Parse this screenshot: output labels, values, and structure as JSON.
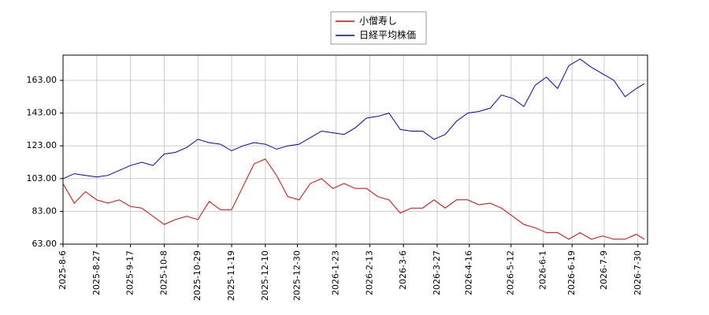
{
  "chart_data": {
    "type": "line",
    "x": [
      "2025-8-6",
      "2025-8-13",
      "2025-8-20",
      "2025-8-27",
      "2025-9-3",
      "2025-9-10",
      "2025-9-17",
      "2025-9-24",
      "2025-10-1",
      "2025-10-8",
      "2025-10-15",
      "2025-10-22",
      "2025-10-29",
      "2025-11-5",
      "2025-11-12",
      "2025-11-19",
      "2025-11-26",
      "2025-12-3",
      "2025-12-10",
      "2025-12-17",
      "2025-12-24",
      "2025-12-31",
      "2026-1-7",
      "2026-1-14",
      "2026-1-21",
      "2026-1-28",
      "2026-2-4",
      "2026-2-11",
      "2026-2-18",
      "2026-2-25",
      "2026-3-4",
      "2026-3-11",
      "2026-3-18",
      "2026-3-25",
      "2026-4-1",
      "2026-4-8",
      "2026-4-15",
      "2026-4-22",
      "2026-4-29",
      "2026-5-6",
      "2026-5-13",
      "2026-5-20",
      "2026-5-27",
      "2026-6-3",
      "2026-6-10",
      "2026-6-17",
      "2026-6-24",
      "2026-7-1",
      "2026-7-8",
      "2026-7-15",
      "2026-7-22",
      "2026-7-29",
      "2026-8-3"
    ],
    "series": [
      {
        "name": "小僧寿し",
        "color": "#dd0000",
        "values": [
          100,
          88,
          95,
          90,
          88,
          90,
          86,
          85,
          80,
          75,
          78,
          80,
          78,
          89,
          84,
          84,
          98,
          112,
          115,
          105,
          92,
          90,
          100,
          103,
          97,
          100,
          97,
          97,
          92,
          90,
          82,
          85,
          85,
          90,
          85,
          90,
          90,
          87,
          88,
          85,
          80,
          75,
          73,
          70,
          70,
          66,
          70,
          66,
          68,
          66,
          66,
          69,
          66
        ]
      },
      {
        "name": "日経平均株価",
        "color": "#0000cc",
        "values": [
          103,
          106,
          105,
          104,
          105,
          108,
          111,
          113,
          111,
          118,
          119,
          122,
          127,
          125,
          124,
          120,
          123,
          125,
          124,
          121,
          123,
          124,
          128,
          132,
          131,
          130,
          134,
          140,
          141,
          143,
          133,
          132,
          132,
          127,
          130,
          138,
          143,
          144,
          146,
          154,
          152,
          147,
          160,
          165,
          158,
          172,
          176,
          171,
          167,
          163,
          153,
          158,
          161
        ]
      }
    ],
    "xlim": [
      "2025-8-6",
      "2026-8-5"
    ],
    "xticks": [
      "2025-8-6",
      "2025-8-27",
      "2025-9-17",
      "2025-10-8",
      "2025-10-29",
      "2025-11-19",
      "2025-12-10",
      "2025-12-30",
      "2026-1-23",
      "2026-2-13",
      "2026-3-6",
      "2026-3-27",
      "2026-4-16",
      "2026-5-12",
      "2026-6-1",
      "2026-6-19",
      "2026-7-9",
      "2026-7-30"
    ],
    "ylim": [
      63,
      178.4
    ],
    "yticks": [
      {
        "value": 63,
        "label": "63.00"
      },
      {
        "value": 83,
        "label": "83.00"
      },
      {
        "value": 103,
        "label": "103.00"
      },
      {
        "value": 123,
        "label": "123.00"
      },
      {
        "value": 143,
        "label": "143.00"
      },
      {
        "value": 163,
        "label": "163.00"
      }
    ],
    "grid": true,
    "legend": "top"
  }
}
